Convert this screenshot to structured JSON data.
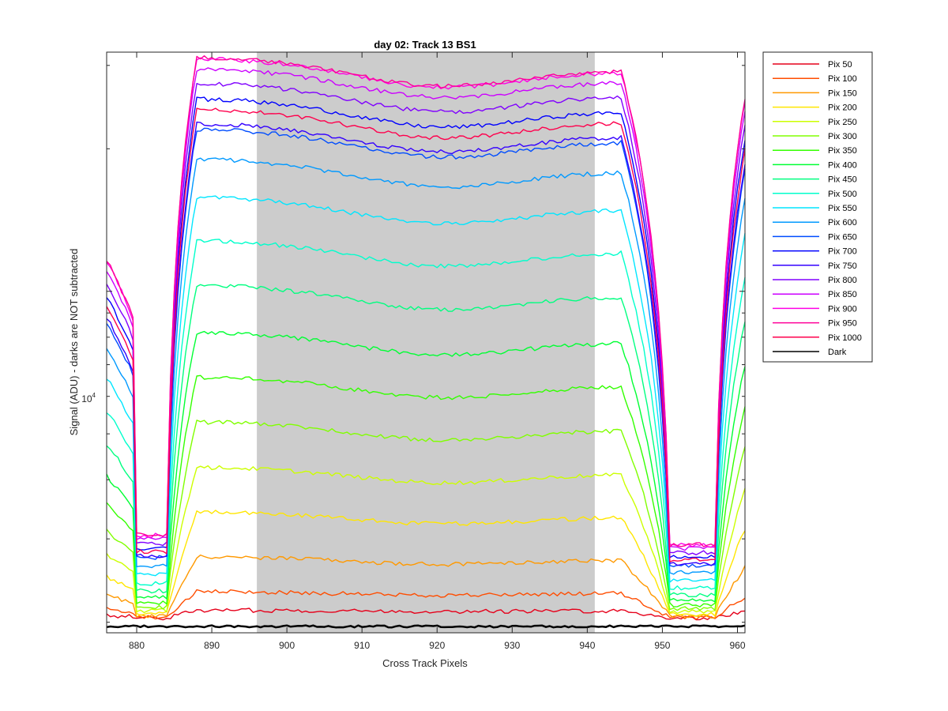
{
  "chart_data": {
    "type": "line",
    "title": "day 02: Track 13  BS1",
    "xlabel": "Cross Track Pixels",
    "ylabel": "Signal (ADU) - darks are NOT subtracted",
    "yscale": "log",
    "xlim": [
      876,
      961
    ],
    "ylim": [
      1900,
      32000
    ],
    "xticks": [
      880,
      890,
      900,
      910,
      920,
      930,
      940,
      950,
      960
    ],
    "xtick_labels": [
      "880",
      "890",
      "900",
      "910",
      "920",
      "930",
      "940",
      "950",
      "960"
    ],
    "ytick_label_main": "10",
    "ytick_label_exp": "4",
    "ytick_label_value": 10000,
    "shaded_region": {
      "x": [
        896,
        941
      ],
      "color": "#cccccc"
    },
    "grid": false,
    "legend_position": "outside-right",
    "series": [
      {
        "name": "Pix 50",
        "color": "#e6001a",
        "plateau": 2120
      },
      {
        "name": "Pix 100",
        "color": "#ff4d00",
        "plateau": 2320
      },
      {
        "name": "Pix 150",
        "color": "#ff9900",
        "plateau": 2750
      },
      {
        "name": "Pix 200",
        "color": "#ffe600",
        "plateau": 3420
      },
      {
        "name": "Pix 250",
        "color": "#ccff00",
        "plateau": 4250
      },
      {
        "name": "Pix 300",
        "color": "#80ff00",
        "plateau": 5300
      },
      {
        "name": "Pix 350",
        "color": "#33ff00",
        "plateau": 6600
      },
      {
        "name": "Pix 400",
        "color": "#00ff33",
        "plateau": 8200
      },
      {
        "name": "Pix 450",
        "color": "#00ff80",
        "plateau": 10300
      },
      {
        "name": "Pix 500",
        "color": "#00ffcc",
        "plateau": 12800
      },
      {
        "name": "Pix 550",
        "color": "#00e6ff",
        "plateau": 15800
      },
      {
        "name": "Pix 600",
        "color": "#0099ff",
        "plateau": 19000
      },
      {
        "name": "Pix 650",
        "color": "#004dff",
        "plateau": 22000
      },
      {
        "name": "Pix 700",
        "color": "#0000ff",
        "plateau": 25500
      },
      {
        "name": "Pix 750",
        "color": "#3300ff",
        "plateau": 22600
      },
      {
        "name": "Pix 800",
        "color": "#8000ff",
        "plateau": 27500
      },
      {
        "name": "Pix 850",
        "color": "#cc00ff",
        "plateau": 29500
      },
      {
        "name": "Pix 900",
        "color": "#ff00e6",
        "plateau": 31000
      },
      {
        "name": "Pix 950",
        "color": "#ff0099",
        "plateau": 31200
      },
      {
        "name": "Pix 1000",
        "color": "#ff004d",
        "plateau": 24200
      },
      {
        "name": "Dark",
        "color": "#000000",
        "plateau": 1960
      }
    ]
  }
}
